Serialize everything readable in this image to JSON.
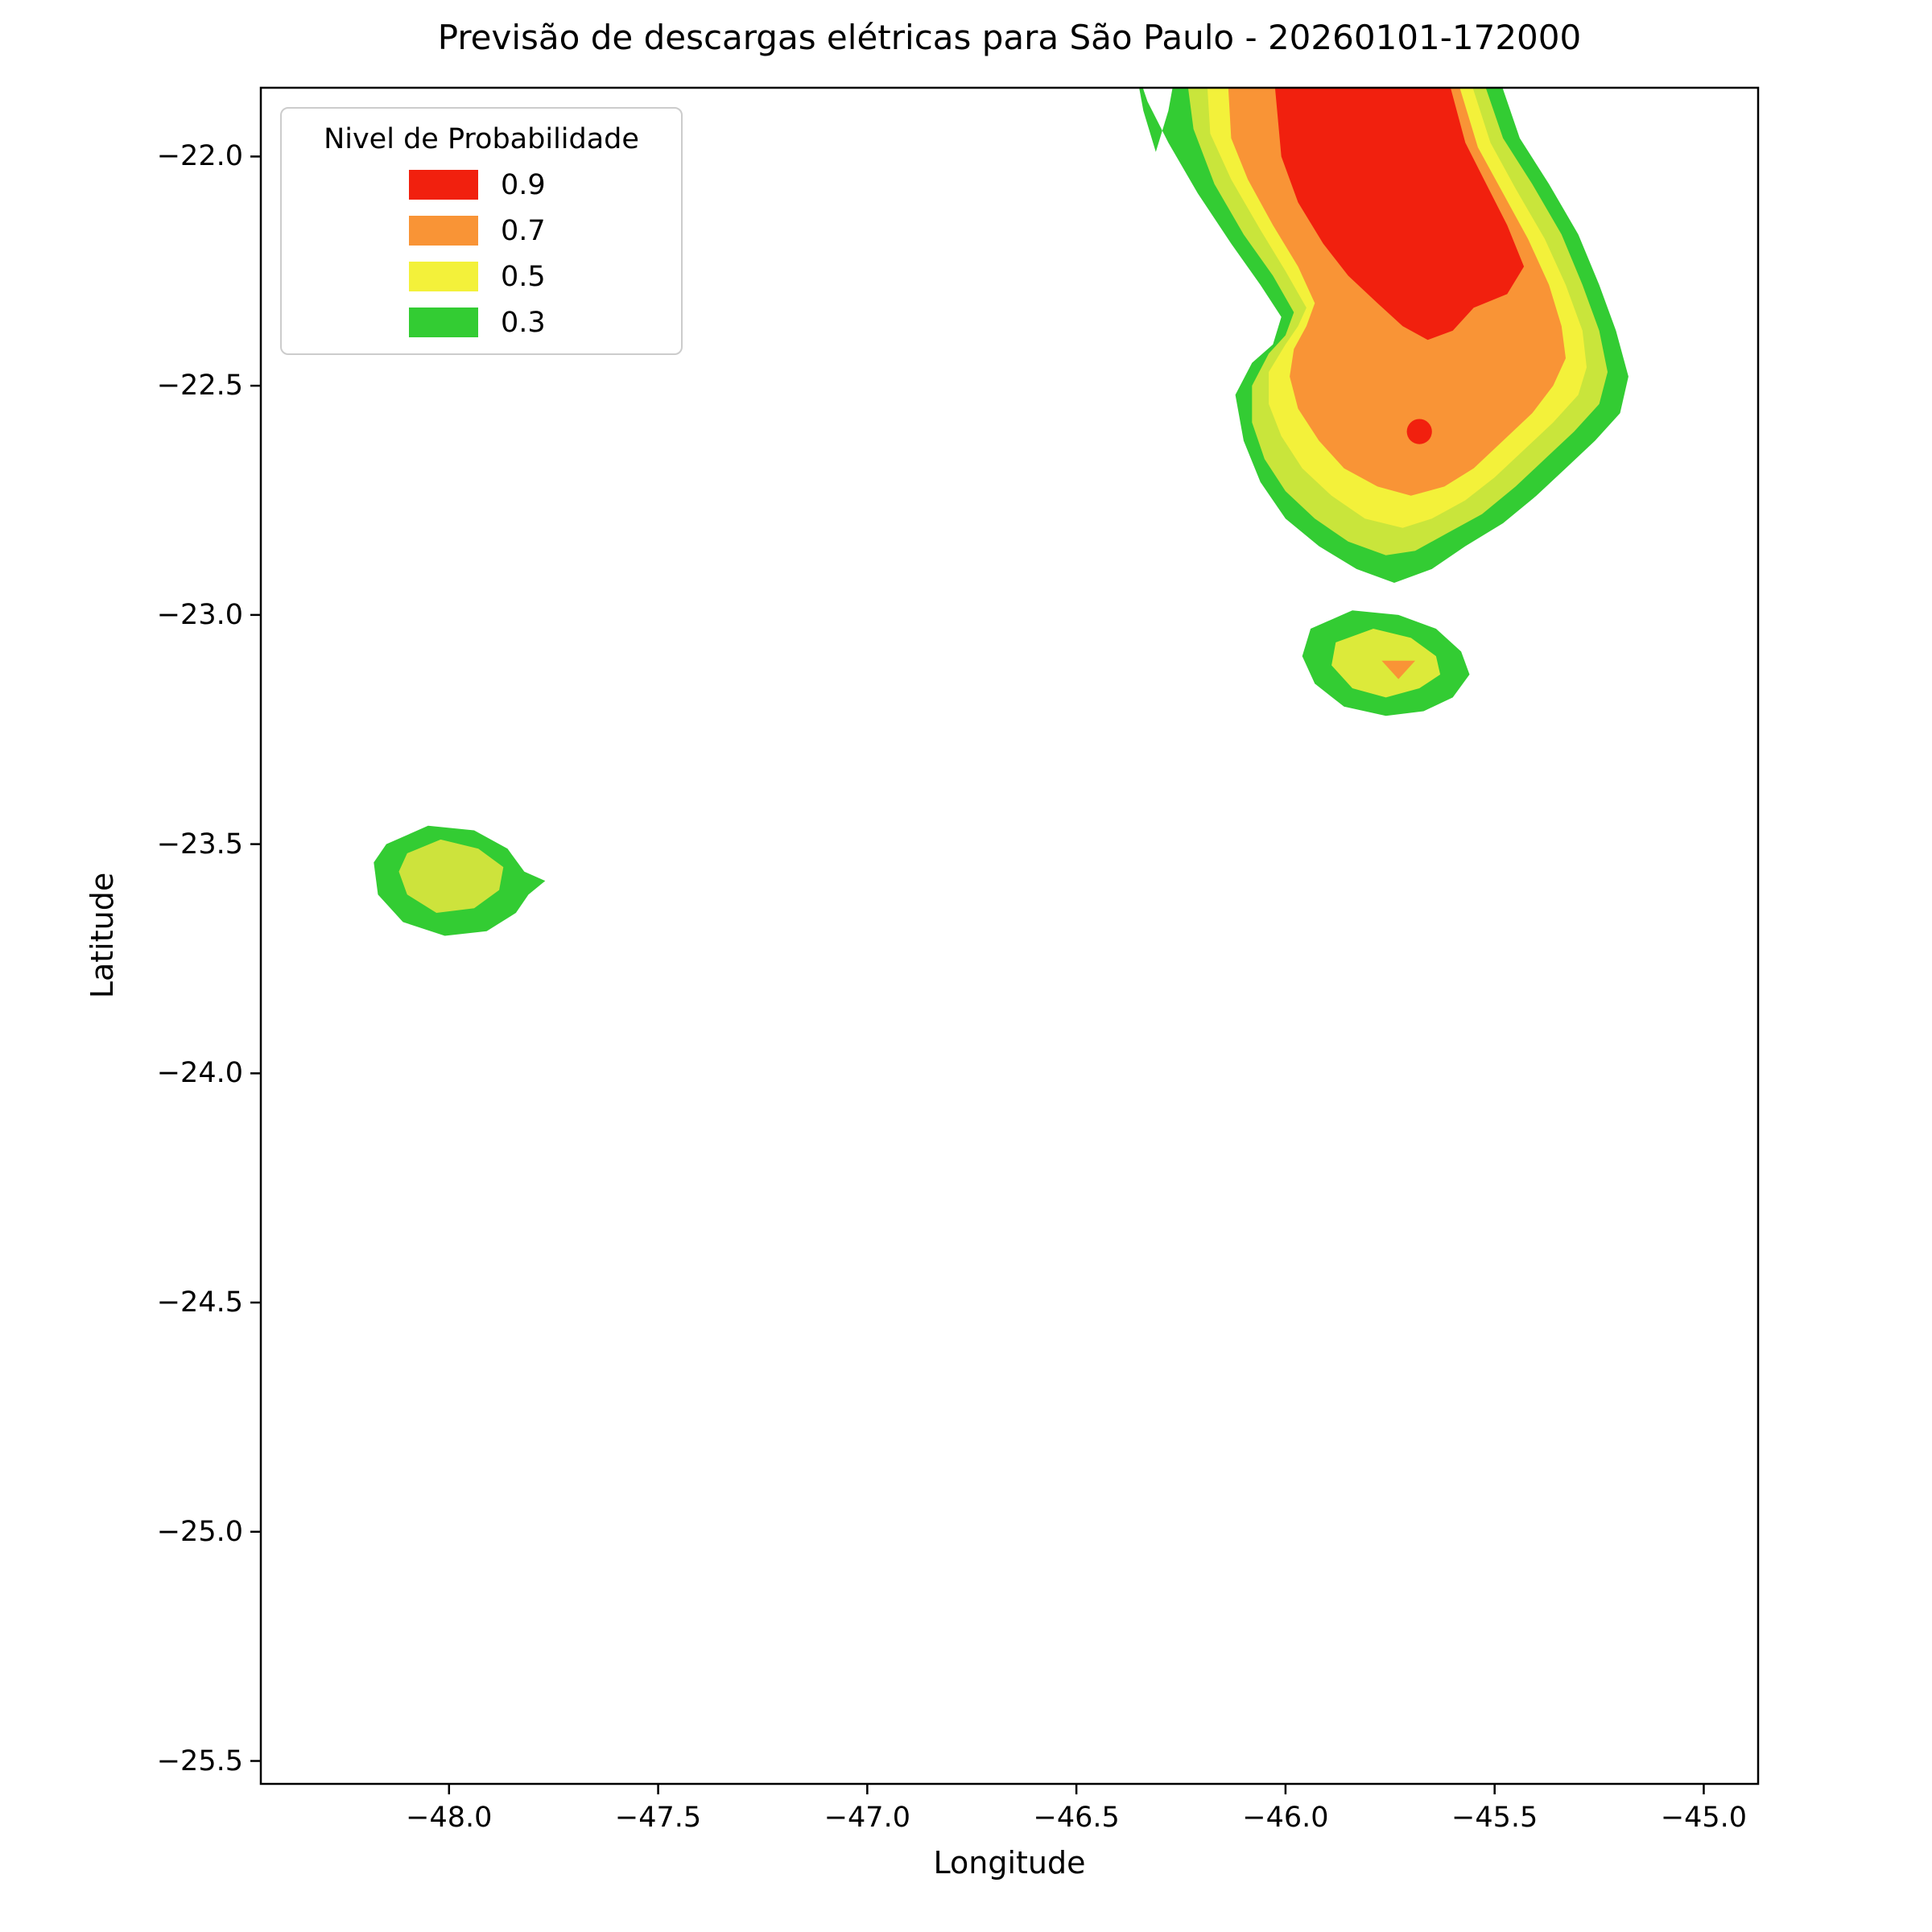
{
  "chart_data": {
    "type": "filled-contour-map",
    "title": "Previsão de descargas elétricas para São Paulo - 20260101-172000",
    "xlabel": "Longitude",
    "ylabel": "Latitude",
    "xlim": [
      -48.45,
      -44.87
    ],
    "ylim": [
      -25.55,
      -21.85
    ],
    "grid": false,
    "xticks": [
      {
        "value": -48.0,
        "label": "−48.0"
      },
      {
        "value": -47.5,
        "label": "−47.5"
      },
      {
        "value": -47.0,
        "label": "−47.0"
      },
      {
        "value": -46.5,
        "label": "−46.5"
      },
      {
        "value": -46.0,
        "label": "−46.0"
      },
      {
        "value": -45.5,
        "label": "−45.5"
      },
      {
        "value": -45.0,
        "label": "−45.0"
      }
    ],
    "yticks": [
      {
        "value": -22.0,
        "label": "−22.0"
      },
      {
        "value": -22.5,
        "label": "−22.5"
      },
      {
        "value": -23.0,
        "label": "−23.0"
      },
      {
        "value": -23.5,
        "label": "−23.5"
      },
      {
        "value": -24.0,
        "label": "−24.0"
      },
      {
        "value": -24.5,
        "label": "−24.5"
      },
      {
        "value": -25.0,
        "label": "−25.0"
      },
      {
        "value": -25.5,
        "label": "−25.5"
      }
    ],
    "legend": {
      "title": "Nivel de Probabilidade",
      "position": "upper-left",
      "entries": [
        {
          "label": "0.9",
          "color": "#f1200e"
        },
        {
          "label": "0.7",
          "color": "#f99436"
        },
        {
          "label": "0.5",
          "color": "#f3f13a"
        },
        {
          "label": "0.3",
          "color": "#33cc33"
        }
      ]
    },
    "probability_contours": [
      {
        "name": "main-cell-p03",
        "level": 0.3,
        "color": "#33cc33",
        "points": [
          [
            -46.36,
            -21.8
          ],
          [
            -46.34,
            -21.9
          ],
          [
            -46.31,
            -21.99
          ],
          [
            -46.28,
            -21.9
          ],
          [
            -46.26,
            -21.8
          ],
          [
            -45.5,
            -21.8
          ],
          [
            -45.44,
            -21.96
          ],
          [
            -45.37,
            -22.06
          ],
          [
            -45.3,
            -22.17
          ],
          [
            -45.25,
            -22.28
          ],
          [
            -45.21,
            -22.38
          ],
          [
            -45.18,
            -22.48
          ],
          [
            -45.2,
            -22.56
          ],
          [
            -45.26,
            -22.62
          ],
          [
            -45.33,
            -22.68
          ],
          [
            -45.4,
            -22.74
          ],
          [
            -45.48,
            -22.8
          ],
          [
            -45.57,
            -22.85
          ],
          [
            -45.65,
            -22.9
          ],
          [
            -45.74,
            -22.93
          ],
          [
            -45.83,
            -22.9
          ],
          [
            -45.92,
            -22.85
          ],
          [
            -46.0,
            -22.79
          ],
          [
            -46.06,
            -22.71
          ],
          [
            -46.1,
            -22.62
          ],
          [
            -46.12,
            -22.52
          ],
          [
            -46.08,
            -22.45
          ],
          [
            -46.03,
            -22.41
          ],
          [
            -46.01,
            -22.35
          ],
          [
            -46.06,
            -22.28
          ],
          [
            -46.13,
            -22.19
          ],
          [
            -46.21,
            -22.08
          ],
          [
            -46.28,
            -21.97
          ],
          [
            -46.33,
            -21.88
          ]
        ]
      },
      {
        "name": "main-cell-p04-band",
        "level": 0.4,
        "color": "#c9e53b",
        "points": [
          [
            -46.24,
            -21.8
          ],
          [
            -45.54,
            -21.8
          ],
          [
            -45.48,
            -21.96
          ],
          [
            -45.41,
            -22.06
          ],
          [
            -45.34,
            -22.17
          ],
          [
            -45.29,
            -22.28
          ],
          [
            -45.25,
            -22.38
          ],
          [
            -45.23,
            -22.47
          ],
          [
            -45.25,
            -22.54
          ],
          [
            -45.31,
            -22.6
          ],
          [
            -45.38,
            -22.66
          ],
          [
            -45.45,
            -22.72
          ],
          [
            -45.53,
            -22.78
          ],
          [
            -45.61,
            -22.82
          ],
          [
            -45.69,
            -22.86
          ],
          [
            -45.76,
            -22.87
          ],
          [
            -45.85,
            -22.84
          ],
          [
            -45.93,
            -22.79
          ],
          [
            -46.0,
            -22.73
          ],
          [
            -46.05,
            -22.66
          ],
          [
            -46.08,
            -22.58
          ],
          [
            -46.08,
            -22.5
          ],
          [
            -46.04,
            -22.43
          ],
          [
            -46.0,
            -22.39
          ],
          [
            -45.98,
            -22.34
          ],
          [
            -46.03,
            -22.26
          ],
          [
            -46.1,
            -22.17
          ],
          [
            -46.17,
            -22.06
          ],
          [
            -46.22,
            -21.94
          ]
        ]
      },
      {
        "name": "main-cell-p05",
        "level": 0.5,
        "color": "#f3f13a",
        "points": [
          [
            -46.19,
            -21.8
          ],
          [
            -45.57,
            -21.8
          ],
          [
            -45.51,
            -21.97
          ],
          [
            -45.45,
            -22.07
          ],
          [
            -45.38,
            -22.18
          ],
          [
            -45.33,
            -22.28
          ],
          [
            -45.29,
            -22.38
          ],
          [
            -45.28,
            -22.46
          ],
          [
            -45.3,
            -22.52
          ],
          [
            -45.36,
            -22.58
          ],
          [
            -45.43,
            -22.64
          ],
          [
            -45.5,
            -22.7
          ],
          [
            -45.57,
            -22.75
          ],
          [
            -45.65,
            -22.79
          ],
          [
            -45.72,
            -22.81
          ],
          [
            -45.81,
            -22.79
          ],
          [
            -45.89,
            -22.74
          ],
          [
            -45.96,
            -22.68
          ],
          [
            -46.01,
            -22.61
          ],
          [
            -46.04,
            -22.54
          ],
          [
            -46.04,
            -22.47
          ],
          [
            -46.0,
            -22.41
          ],
          [
            -45.97,
            -22.37
          ],
          [
            -45.95,
            -22.33
          ],
          [
            -46.0,
            -22.25
          ],
          [
            -46.06,
            -22.16
          ],
          [
            -46.13,
            -22.05
          ],
          [
            -46.18,
            -21.95
          ]
        ]
      },
      {
        "name": "main-cell-p07",
        "level": 0.7,
        "color": "#f99436",
        "points": [
          [
            -46.14,
            -21.8
          ],
          [
            -45.6,
            -21.8
          ],
          [
            -45.54,
            -21.98
          ],
          [
            -45.48,
            -22.08
          ],
          [
            -45.42,
            -22.18
          ],
          [
            -45.37,
            -22.28
          ],
          [
            -45.34,
            -22.37
          ],
          [
            -45.33,
            -22.44
          ],
          [
            -45.36,
            -22.5
          ],
          [
            -45.41,
            -22.56
          ],
          [
            -45.48,
            -22.62
          ],
          [
            -45.55,
            -22.68
          ],
          [
            -45.62,
            -22.72
          ],
          [
            -45.7,
            -22.74
          ],
          [
            -45.78,
            -22.72
          ],
          [
            -45.86,
            -22.68
          ],
          [
            -45.92,
            -22.62
          ],
          [
            -45.97,
            -22.55
          ],
          [
            -45.99,
            -22.48
          ],
          [
            -45.98,
            -22.42
          ],
          [
            -45.95,
            -22.37
          ],
          [
            -45.93,
            -22.32
          ],
          [
            -45.97,
            -22.24
          ],
          [
            -46.03,
            -22.15
          ],
          [
            -46.09,
            -22.05
          ],
          [
            -46.13,
            -21.96
          ]
        ]
      },
      {
        "name": "main-cell-p09",
        "level": 0.9,
        "color": "#f1200e",
        "points": [
          [
            -46.03,
            -21.8
          ],
          [
            -45.62,
            -21.8
          ],
          [
            -45.57,
            -21.97
          ],
          [
            -45.52,
            -22.06
          ],
          [
            -45.47,
            -22.15
          ],
          [
            -45.43,
            -22.24
          ],
          [
            -45.47,
            -22.3
          ],
          [
            -45.55,
            -22.33
          ],
          [
            -45.6,
            -22.38
          ],
          [
            -45.66,
            -22.4
          ],
          [
            -45.72,
            -22.37
          ],
          [
            -45.78,
            -22.32
          ],
          [
            -45.85,
            -22.26
          ],
          [
            -45.91,
            -22.19
          ],
          [
            -45.97,
            -22.1
          ],
          [
            -46.01,
            -22.0
          ]
        ]
      },
      {
        "name": "main-cell-core-marker",
        "level": 0.9,
        "color": "#f1200e",
        "type": "circle",
        "center": [
          -45.68,
          -22.6
        ],
        "radius_deg": 0.03
      },
      {
        "name": "south-cell-p03",
        "level": 0.3,
        "color": "#33cc33",
        "points": [
          [
            -45.94,
            -23.03
          ],
          [
            -45.84,
            -22.99
          ],
          [
            -45.73,
            -23.0
          ],
          [
            -45.64,
            -23.03
          ],
          [
            -45.58,
            -23.08
          ],
          [
            -45.56,
            -23.13
          ],
          [
            -45.6,
            -23.18
          ],
          [
            -45.67,
            -23.21
          ],
          [
            -45.76,
            -23.22
          ],
          [
            -45.86,
            -23.2
          ],
          [
            -45.93,
            -23.15
          ],
          [
            -45.96,
            -23.09
          ]
        ]
      },
      {
        "name": "south-cell-p05",
        "level": 0.5,
        "color": "#dcea3a",
        "points": [
          [
            -45.88,
            -23.06
          ],
          [
            -45.79,
            -23.03
          ],
          [
            -45.7,
            -23.05
          ],
          [
            -45.64,
            -23.09
          ],
          [
            -45.63,
            -23.13
          ],
          [
            -45.68,
            -23.16
          ],
          [
            -45.76,
            -23.18
          ],
          [
            -45.84,
            -23.16
          ],
          [
            -45.89,
            -23.11
          ]
        ]
      },
      {
        "name": "south-cell-p07",
        "level": 0.7,
        "color": "#f99436",
        "points": [
          [
            -45.77,
            -23.1
          ],
          [
            -45.69,
            -23.1
          ],
          [
            -45.73,
            -23.14
          ]
        ]
      },
      {
        "name": "west-cell-p03",
        "level": 0.3,
        "color": "#33cc33",
        "points": [
          [
            -48.15,
            -23.5
          ],
          [
            -48.05,
            -23.46
          ],
          [
            -47.94,
            -23.47
          ],
          [
            -47.86,
            -23.51
          ],
          [
            -47.82,
            -23.56
          ],
          [
            -47.77,
            -23.58
          ],
          [
            -47.81,
            -23.61
          ],
          [
            -47.84,
            -23.65
          ],
          [
            -47.91,
            -23.69
          ],
          [
            -48.01,
            -23.7
          ],
          [
            -48.11,
            -23.67
          ],
          [
            -48.17,
            -23.61
          ],
          [
            -48.18,
            -23.54
          ]
        ]
      },
      {
        "name": "west-cell-p05",
        "level": 0.5,
        "color": "#cde33c",
        "points": [
          [
            -48.1,
            -23.52
          ],
          [
            -48.02,
            -23.49
          ],
          [
            -47.93,
            -23.51
          ],
          [
            -47.87,
            -23.55
          ],
          [
            -47.88,
            -23.6
          ],
          [
            -47.94,
            -23.64
          ],
          [
            -48.03,
            -23.65
          ],
          [
            -48.1,
            -23.61
          ],
          [
            -48.12,
            -23.56
          ]
        ]
      }
    ]
  }
}
